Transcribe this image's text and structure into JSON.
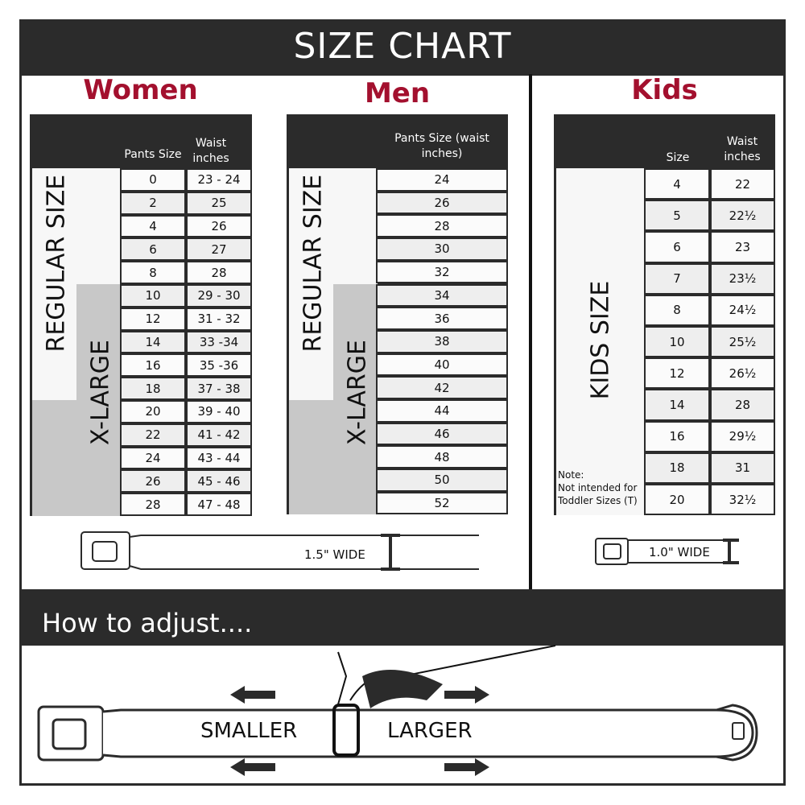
{
  "title": "SIZE CHART",
  "women": {
    "title": "Women",
    "col1": "Pants Size",
    "col2": "Waist inches",
    "regular_label": "REGULAR SIZE",
    "xlarge_label": "X-LARGE",
    "rows": [
      [
        "0",
        "23 - 24"
      ],
      [
        "2",
        "25"
      ],
      [
        "4",
        "26"
      ],
      [
        "6",
        "27"
      ],
      [
        "8",
        "28"
      ],
      [
        "10",
        "29 - 30"
      ],
      [
        "12",
        "31 - 32"
      ],
      [
        "14",
        "33 -34"
      ],
      [
        "16",
        "35 -36"
      ],
      [
        "18",
        "37 - 38"
      ],
      [
        "20",
        "39 - 40"
      ],
      [
        "22",
        "41 - 42"
      ],
      [
        "24",
        "43 - 44"
      ],
      [
        "26",
        "45 - 46"
      ],
      [
        "28",
        "47 - 48"
      ]
    ],
    "width_label": "1.5\" WIDE"
  },
  "men": {
    "title": "Men",
    "col1": "Pants Size (waist inches)",
    "regular_label": "REGULAR SIZE",
    "xlarge_label": "X-LARGE",
    "rows": [
      "24",
      "26",
      "28",
      "30",
      "32",
      "34",
      "36",
      "38",
      "40",
      "42",
      "44",
      "46",
      "48",
      "50",
      "52"
    ]
  },
  "kids": {
    "title": "Kids",
    "col1": "Size",
    "col2": "Waist inches",
    "size_label": "KIDS SIZE",
    "rows": [
      [
        "4",
        "22"
      ],
      [
        "5",
        "22½"
      ],
      [
        "6",
        "23"
      ],
      [
        "7",
        "23½"
      ],
      [
        "8",
        "24½"
      ],
      [
        "10",
        "25½"
      ],
      [
        "12",
        "26½"
      ],
      [
        "14",
        "28"
      ],
      [
        "16",
        "29½"
      ],
      [
        "18",
        "31"
      ],
      [
        "20",
        "32½"
      ]
    ],
    "note_title": "Note:",
    "note_line1": "Not intended for",
    "note_line2": "Toddler Sizes (T)",
    "width_label": "1.0\" WIDE"
  },
  "adjust": {
    "title": "How to adjust....",
    "smaller": "SMALLER",
    "larger": "LARGER"
  },
  "colors": {
    "header": "#2b2b2b",
    "accent": "#a3102e",
    "xlarge_fill": "#c8c8c8",
    "row_alt": "#eeeeee"
  }
}
